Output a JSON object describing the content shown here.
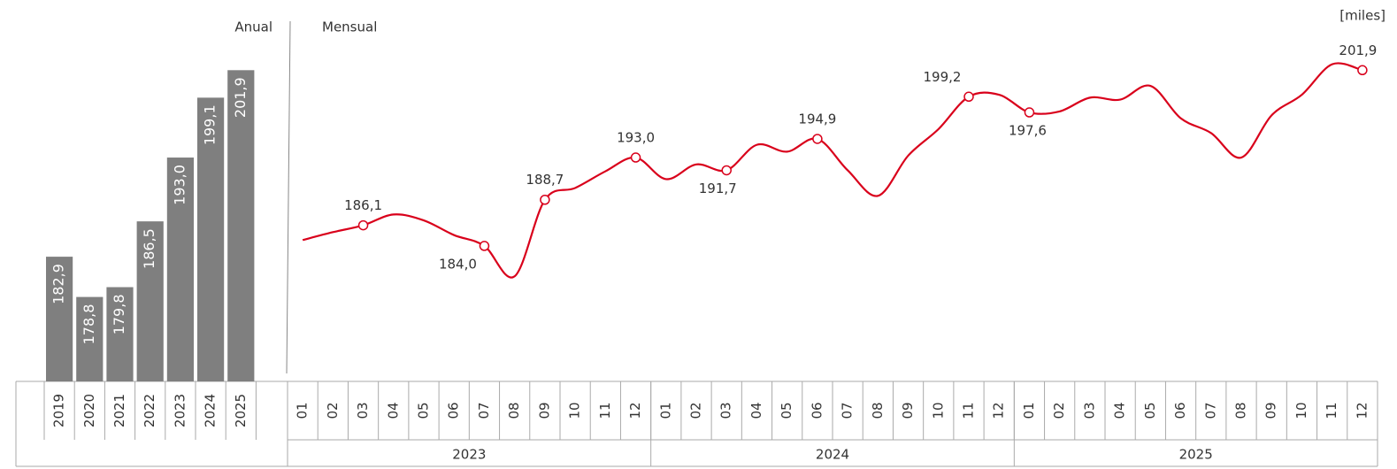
{
  "chart_data": [
    {
      "type": "bar",
      "title": "Anual",
      "categories": [
        "2019",
        "2020",
        "2021",
        "2022",
        "2023",
        "2024",
        "2025"
      ],
      "values": [
        182.9,
        178.8,
        179.8,
        186.5,
        193.0,
        199.1,
        201.9
      ],
      "value_labels": [
        "182,9",
        "178,8",
        "179,8",
        "186,5",
        "193,0",
        "199,1",
        "201,9"
      ],
      "color": "#7f7f7f",
      "ylim": [
        170.2,
        204
      ]
    },
    {
      "type": "line",
      "title": "Mensual",
      "unit_label": "[miles]",
      "categories": [
        "01",
        "02",
        "03",
        "04",
        "05",
        "06",
        "07",
        "08",
        "09",
        "10",
        "11",
        "12",
        "01",
        "02",
        "03",
        "04",
        "05",
        "06",
        "07",
        "08",
        "09",
        "10",
        "11",
        "12",
        "01",
        "02",
        "03",
        "04",
        "05",
        "06",
        "07",
        "08",
        "09",
        "10",
        "11",
        "12"
      ],
      "groups": [
        "2023",
        "2024",
        "2025"
      ],
      "series": [
        {
          "name": "Mensual",
          "color": "#d9001b",
          "values": [
            184.6,
            185.4,
            186.1,
            187.2,
            186.6,
            185.1,
            184.0,
            180.9,
            188.7,
            189.9,
            191.6,
            193.0,
            190.8,
            192.3,
            191.7,
            194.3,
            193.6,
            194.9,
            191.7,
            189.1,
            193.2,
            195.9,
            199.2,
            199.4,
            197.6,
            197.7,
            199.1,
            198.9,
            200.3,
            197.0,
            195.5,
            193.0,
            197.3,
            199.4,
            202.5,
            201.9
          ],
          "value_labels": [
            null,
            null,
            "186,1",
            null,
            null,
            null,
            "184,0",
            null,
            "188,7",
            null,
            null,
            "193,0",
            null,
            null,
            "191,7",
            null,
            null,
            "194,9",
            null,
            null,
            null,
            null,
            "199,2",
            null,
            "197,6",
            null,
            null,
            null,
            null,
            null,
            null,
            null,
            null,
            null,
            null,
            "201,9"
          ]
        }
      ],
      "ylim": [
        170.2,
        204
      ]
    }
  ]
}
